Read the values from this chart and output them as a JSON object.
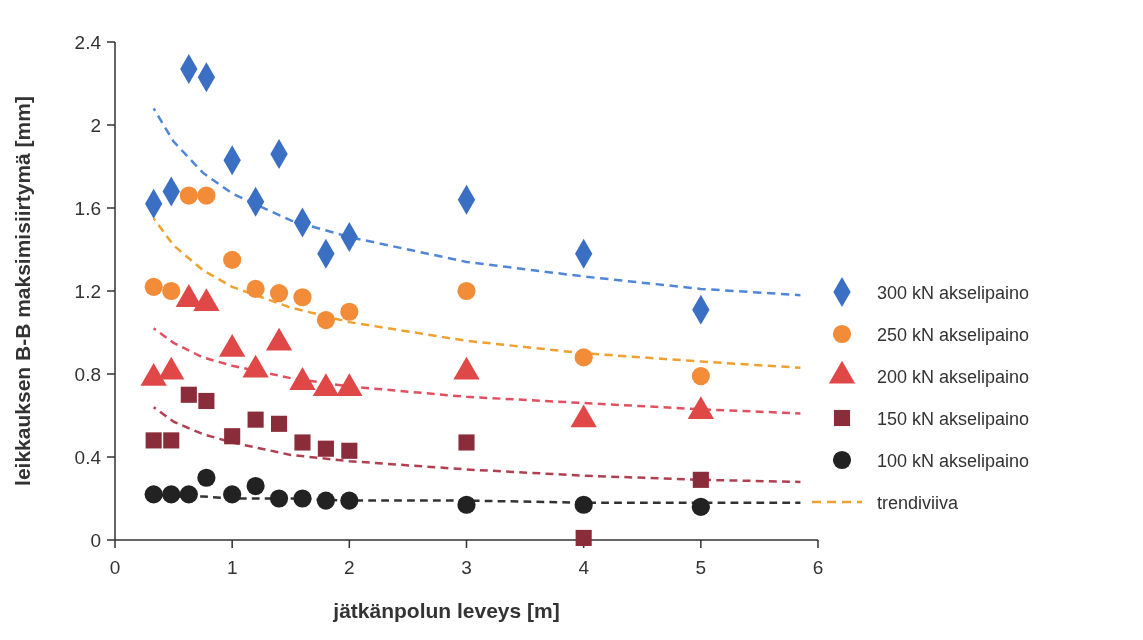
{
  "chart_data": {
    "type": "scatter",
    "xlabel": "jätkänpolun leveys [m]",
    "ylabel": "leikkauksen B-B maksimisiirtymä [mm]",
    "xlim": [
      0,
      6
    ],
    "xticks": [
      0,
      1,
      2,
      3,
      4,
      5,
      6
    ],
    "ylim": [
      0,
      2.4
    ],
    "yticks": [
      0,
      0.4,
      0.8,
      1.2,
      1.6,
      2,
      2.4
    ],
    "grid": false,
    "legend": "right",
    "x": [
      0.33,
      0.48,
      0.63,
      0.78,
      1.0,
      1.2,
      1.4,
      1.6,
      1.8,
      2.0,
      3,
      4,
      5
    ],
    "series": [
      {
        "name": "300 kN akselipaino",
        "marker": "diamond",
        "color": "#3a6fc4",
        "values": [
          1.62,
          1.68,
          2.27,
          2.23,
          1.83,
          1.63,
          1.86,
          1.53,
          1.38,
          1.46,
          1.64,
          1.38,
          1.11
        ]
      },
      {
        "name": "250 kN akselipaino",
        "marker": "circle",
        "color": "#f28c38",
        "values": [
          1.22,
          1.2,
          1.66,
          1.66,
          1.35,
          1.21,
          1.19,
          1.17,
          1.06,
          1.1,
          1.2,
          0.88,
          0.79
        ]
      },
      {
        "name": "200 kN akselipaino",
        "marker": "triangle",
        "color": "#e04848",
        "values": [
          0.78,
          0.81,
          1.16,
          1.14,
          0.92,
          0.82,
          0.95,
          0.76,
          0.73,
          0.73,
          0.81,
          0.58,
          0.62
        ]
      },
      {
        "name": "150 kN akselipaino",
        "marker": "square",
        "color": "#8b2c3a",
        "values": [
          0.48,
          0.48,
          0.7,
          0.67,
          0.5,
          0.58,
          0.56,
          0.47,
          0.44,
          0.43,
          0.47,
          0.01,
          0.29
        ]
      },
      {
        "name": "100 kN akselipaino",
        "marker": "circle",
        "color": "#222222",
        "values": [
          0.22,
          0.22,
          0.22,
          0.3,
          0.22,
          0.26,
          0.2,
          0.2,
          0.19,
          0.19,
          0.17,
          0.17,
          0.16
        ]
      },
      {
        "type": "line",
        "line_style": "dashed",
        "color": "#4f86d8",
        "x": [
          0.33,
          0.5,
          0.75,
          1,
          1.5,
          2,
          3,
          4,
          5,
          5.85
        ],
        "values": [
          2.08,
          1.92,
          1.77,
          1.67,
          1.54,
          1.46,
          1.34,
          1.27,
          1.21,
          1.18
        ]
      },
      {
        "name": "trendiviiva",
        "type": "line",
        "line_style": "dashed",
        "color": "#f0a030",
        "x": [
          0.33,
          0.5,
          0.75,
          1,
          1.5,
          2,
          3,
          4,
          5,
          5.85
        ],
        "values": [
          1.55,
          1.42,
          1.3,
          1.22,
          1.12,
          1.05,
          0.96,
          0.9,
          0.86,
          0.83
        ]
      },
      {
        "type": "line",
        "line_style": "dashed",
        "color": "#e05060",
        "x": [
          0.33,
          0.5,
          0.75,
          1,
          1.5,
          2,
          3,
          4,
          5,
          5.85
        ],
        "values": [
          1.02,
          0.95,
          0.88,
          0.84,
          0.78,
          0.74,
          0.69,
          0.66,
          0.63,
          0.61
        ]
      },
      {
        "type": "line",
        "line_style": "dashed",
        "color": "#b04050",
        "x": [
          0.33,
          0.5,
          0.75,
          1,
          1.5,
          2,
          3,
          4,
          5,
          5.85
        ],
        "values": [
          0.64,
          0.57,
          0.51,
          0.47,
          0.41,
          0.38,
          0.34,
          0.31,
          0.29,
          0.28
        ]
      },
      {
        "type": "line",
        "line_style": "dashed",
        "color": "#333333",
        "x": [
          0.33,
          0.5,
          0.75,
          1,
          1.5,
          2,
          3,
          4,
          5,
          5.85
        ],
        "values": [
          0.22,
          0.21,
          0.21,
          0.2,
          0.2,
          0.19,
          0.19,
          0.18,
          0.18,
          0.18
        ]
      }
    ]
  }
}
